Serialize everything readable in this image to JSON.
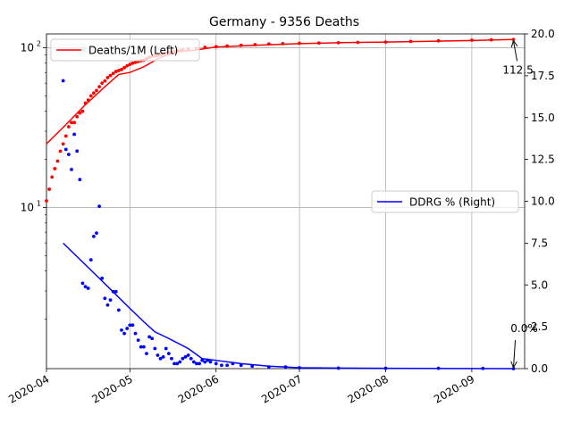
{
  "chart_data": {
    "type": "line",
    "title": "Germany - 9356 Deaths",
    "x_ticks": [
      "2020-04",
      "2020-05",
      "2020-06",
      "2020-07",
      "2020-08",
      "2020-09"
    ],
    "x_range": [
      "2020-04-01",
      "2020-09-20"
    ],
    "left_axis": {
      "scale": "log",
      "range": [
        0.98,
        122
      ],
      "tick_labels": [
        "10^1",
        "10^2"
      ],
      "tick_values": [
        10,
        100
      ]
    },
    "right_axis": {
      "scale": "linear",
      "range": [
        0,
        20
      ],
      "tick_labels": [
        "0.0",
        "2.5",
        "5.0",
        "7.5",
        "10.0",
        "12.5",
        "15.0",
        "17.5",
        "20.0"
      ],
      "tick_values": [
        0,
        2.5,
        5,
        7.5,
        10,
        12.5,
        15,
        17.5,
        20
      ]
    },
    "grid": true,
    "legends": [
      {
        "label": "Deaths/1M (Left)",
        "color": "#ff0000",
        "placement": "upper-left"
      },
      {
        "label": "DDRG % (Right)",
        "color": "#0000ff",
        "placement": "center-right"
      }
    ],
    "annotations": [
      {
        "text": "112.5",
        "series": "Deaths/1M (Left)",
        "x": "2020-09-16",
        "y": 112.5
      },
      {
        "text": "0.0%",
        "series": "DDRG % (Right)",
        "x": "2020-09-16",
        "y": 0.0
      }
    ],
    "series": [
      {
        "name": "Deaths/1M (Left)",
        "color": "#ff0000",
        "axis": "left",
        "scatter": [
          [
            "2020-04-01",
            11.0
          ],
          [
            "2020-04-02",
            13.0
          ],
          [
            "2020-04-03",
            15.5
          ],
          [
            "2020-04-04",
            17.5
          ],
          [
            "2020-04-05",
            19.5
          ],
          [
            "2020-04-06",
            22.5
          ],
          [
            "2020-04-07",
            25.0
          ],
          [
            "2020-04-08",
            28.0
          ],
          [
            "2020-04-09",
            32.0
          ],
          [
            "2020-04-10",
            34.0
          ],
          [
            "2020-04-11",
            34.0
          ],
          [
            "2020-04-12",
            37.0
          ],
          [
            "2020-04-13",
            39.0
          ],
          [
            "2020-04-14",
            40.0
          ],
          [
            "2020-04-15",
            45.0
          ],
          [
            "2020-04-16",
            47.0
          ],
          [
            "2020-04-17",
            50.0
          ],
          [
            "2020-04-18",
            52.0
          ],
          [
            "2020-04-19",
            54.0
          ],
          [
            "2020-04-20",
            57.0
          ],
          [
            "2020-04-21",
            60.0
          ],
          [
            "2020-04-22",
            62.0
          ],
          [
            "2020-04-23",
            65.0
          ],
          [
            "2020-04-24",
            67.0
          ],
          [
            "2020-04-25",
            69.0
          ],
          [
            "2020-04-26",
            71.0
          ],
          [
            "2020-04-27",
            72.0
          ],
          [
            "2020-04-28",
            73.0
          ],
          [
            "2020-04-29",
            75.0
          ],
          [
            "2020-04-30",
            77.0
          ],
          [
            "2020-05-01",
            78.5
          ],
          [
            "2020-05-02",
            80.0
          ],
          [
            "2020-05-03",
            81.0
          ],
          [
            "2020-05-04",
            82.0
          ],
          [
            "2020-05-05",
            83.0
          ],
          [
            "2020-05-06",
            83.5
          ],
          [
            "2020-05-07",
            85.5
          ],
          [
            "2020-05-08",
            87.0
          ],
          [
            "2020-05-09",
            88.5
          ],
          [
            "2020-05-10",
            89.0
          ],
          [
            "2020-05-11",
            89.5
          ],
          [
            "2020-05-12",
            90.5
          ],
          [
            "2020-05-13",
            92.0
          ],
          [
            "2020-05-14",
            93.0
          ],
          [
            "2020-05-15",
            93.5
          ],
          [
            "2020-05-16",
            94.0
          ],
          [
            "2020-05-17",
            94.5
          ],
          [
            "2020-05-18",
            95.0
          ],
          [
            "2020-05-19",
            96.0
          ],
          [
            "2020-05-20",
            97.0
          ],
          [
            "2020-05-22",
            98.0
          ],
          [
            "2020-05-25",
            99.0
          ],
          [
            "2020-05-28",
            100.5
          ],
          [
            "2020-06-01",
            101.5
          ],
          [
            "2020-06-05",
            102.5
          ],
          [
            "2020-06-10",
            103.5
          ],
          [
            "2020-06-15",
            104.5
          ],
          [
            "2020-06-20",
            105.5
          ],
          [
            "2020-06-25",
            106.0
          ],
          [
            "2020-07-01",
            106.5
          ],
          [
            "2020-07-08",
            107.0
          ],
          [
            "2020-07-15",
            107.5
          ],
          [
            "2020-07-22",
            108.0
          ],
          [
            "2020-08-01",
            108.5
          ],
          [
            "2020-08-10",
            109.5
          ],
          [
            "2020-08-20",
            110.5
          ],
          [
            "2020-09-01",
            111.5
          ],
          [
            "2020-09-08",
            112.0
          ],
          [
            "2020-09-16",
            112.5
          ]
        ],
        "trend": [
          [
            "2020-04-01",
            25.0
          ],
          [
            "2020-04-08",
            33.0
          ],
          [
            "2020-04-15",
            44.0
          ],
          [
            "2020-04-22",
            57.0
          ],
          [
            "2020-04-27",
            68.0
          ],
          [
            "2020-05-01",
            70.0
          ],
          [
            "2020-05-06",
            76.0
          ],
          [
            "2020-05-12",
            87.0
          ],
          [
            "2020-05-18",
            94.0
          ],
          [
            "2020-05-25",
            97.0
          ],
          [
            "2020-06-01",
            101.0
          ],
          [
            "2020-06-15",
            103.5
          ],
          [
            "2020-07-01",
            106.0
          ],
          [
            "2020-07-15",
            107.5
          ],
          [
            "2020-08-01",
            108.5
          ],
          [
            "2020-08-15",
            109.5
          ],
          [
            "2020-09-01",
            111.0
          ],
          [
            "2020-09-16",
            112.5
          ]
        ]
      },
      {
        "name": "DDRG % (Right)",
        "color": "#0000ff",
        "axis": "right",
        "scatter": [
          [
            "2020-04-07",
            17.2
          ],
          [
            "2020-04-08",
            13.1
          ],
          [
            "2020-04-09",
            12.8
          ],
          [
            "2020-04-10",
            11.9
          ],
          [
            "2020-04-11",
            14.0
          ],
          [
            "2020-04-12",
            13.0
          ],
          [
            "2020-04-13",
            11.3
          ],
          [
            "2020-04-14",
            5.1
          ],
          [
            "2020-04-15",
            4.9
          ],
          [
            "2020-04-16",
            4.8
          ],
          [
            "2020-04-17",
            6.5
          ],
          [
            "2020-04-18",
            7.9
          ],
          [
            "2020-04-19",
            8.1
          ],
          [
            "2020-04-20",
            9.7
          ],
          [
            "2020-04-21",
            5.4
          ],
          [
            "2020-04-22",
            4.2
          ],
          [
            "2020-04-23",
            3.8
          ],
          [
            "2020-04-24",
            4.1
          ],
          [
            "2020-04-25",
            4.6
          ],
          [
            "2020-04-26",
            4.6
          ],
          [
            "2020-04-27",
            3.5
          ],
          [
            "2020-04-28",
            2.3
          ],
          [
            "2020-04-29",
            2.1
          ],
          [
            "2020-04-30",
            2.4
          ],
          [
            "2020-05-01",
            2.6
          ],
          [
            "2020-05-02",
            2.6
          ],
          [
            "2020-05-03",
            2.1
          ],
          [
            "2020-05-04",
            1.7
          ],
          [
            "2020-05-05",
            1.3
          ],
          [
            "2020-05-06",
            1.3
          ],
          [
            "2020-05-07",
            0.9
          ],
          [
            "2020-05-08",
            1.9
          ],
          [
            "2020-05-09",
            1.8
          ],
          [
            "2020-05-10",
            1.2
          ],
          [
            "2020-05-11",
            0.8
          ],
          [
            "2020-05-12",
            0.6
          ],
          [
            "2020-05-13",
            0.7
          ],
          [
            "2020-05-14",
            1.2
          ],
          [
            "2020-05-15",
            0.9
          ],
          [
            "2020-05-16",
            0.6
          ],
          [
            "2020-05-17",
            0.3
          ],
          [
            "2020-05-18",
            0.3
          ],
          [
            "2020-05-19",
            0.4
          ],
          [
            "2020-05-20",
            0.6
          ],
          [
            "2020-05-21",
            0.7
          ],
          [
            "2020-05-22",
            0.8
          ],
          [
            "2020-05-23",
            0.6
          ],
          [
            "2020-05-24",
            0.4
          ],
          [
            "2020-05-25",
            0.3
          ],
          [
            "2020-05-26",
            0.3
          ],
          [
            "2020-05-27",
            0.5
          ],
          [
            "2020-05-28",
            0.4
          ],
          [
            "2020-05-29",
            0.5
          ],
          [
            "2020-05-30",
            0.4
          ],
          [
            "2020-06-01",
            0.3
          ],
          [
            "2020-06-03",
            0.2
          ],
          [
            "2020-06-05",
            0.2
          ],
          [
            "2020-06-07",
            0.3
          ],
          [
            "2020-06-10",
            0.2
          ],
          [
            "2020-06-14",
            0.15
          ],
          [
            "2020-06-20",
            0.1
          ],
          [
            "2020-06-26",
            0.1
          ],
          [
            "2020-07-01",
            0.05
          ],
          [
            "2020-07-15",
            0.03
          ],
          [
            "2020-08-01",
            0.02
          ],
          [
            "2020-08-20",
            0.02
          ],
          [
            "2020-09-05",
            0.01
          ],
          [
            "2020-09-16",
            0.0
          ]
        ],
        "trend": [
          [
            "2020-04-07",
            7.5
          ],
          [
            "2020-04-20",
            5.4
          ],
          [
            "2020-05-01",
            3.6
          ],
          [
            "2020-05-06",
            2.8
          ],
          [
            "2020-05-10",
            2.2
          ],
          [
            "2020-05-15",
            1.8
          ],
          [
            "2020-05-22",
            1.2
          ],
          [
            "2020-05-27",
            0.6
          ],
          [
            "2020-06-03",
            0.45
          ],
          [
            "2020-06-10",
            0.3
          ],
          [
            "2020-06-20",
            0.15
          ],
          [
            "2020-07-01",
            0.05
          ],
          [
            "2020-08-01",
            0.02
          ],
          [
            "2020-09-16",
            0.0
          ]
        ]
      }
    ]
  }
}
